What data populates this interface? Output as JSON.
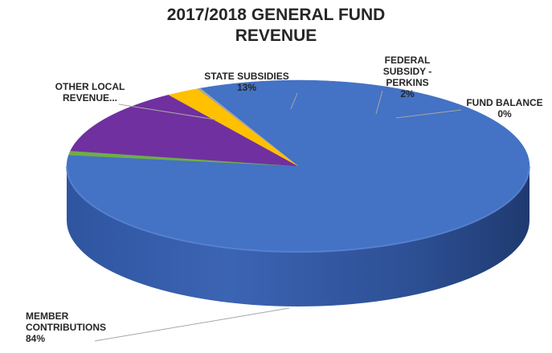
{
  "chart_data": {
    "type": "pie",
    "title_lines": [
      "2017/2018 GENERAL FUND",
      "REVENUE"
    ],
    "slices": [
      {
        "name": "MEMBER CONTRIBUTIONS",
        "label_lines": [
          "MEMBER",
          "CONTRIBUTIONS"
        ],
        "percent_label": "84%",
        "value": 84,
        "color": "#4472C4"
      },
      {
        "name": "OTHER LOCAL REVENUE...",
        "label_lines": [
          "OTHER LOCAL",
          "REVENUE..."
        ],
        "percent_label": "",
        "value": 0.8,
        "color": "#70AD47"
      },
      {
        "name": "STATE SUBSIDIES",
        "label_lines": [
          "STATE SUBSIDIES"
        ],
        "percent_label": "13%",
        "value": 12.7,
        "color": "#7030A0"
      },
      {
        "name": "FEDERAL SUBSIDY - PERKINS",
        "label_lines": [
          "FEDERAL",
          "SUBSIDY -",
          "PERKINS"
        ],
        "percent_label": "2%",
        "value": 2.3,
        "color": "#FFC000"
      },
      {
        "name": "FUND BALANCE",
        "label_lines": [
          "FUND BALANCE"
        ],
        "percent_label": "0%",
        "value": 0.2,
        "color": "#A5A5A5"
      }
    ],
    "legend": "none",
    "style": "3d"
  }
}
